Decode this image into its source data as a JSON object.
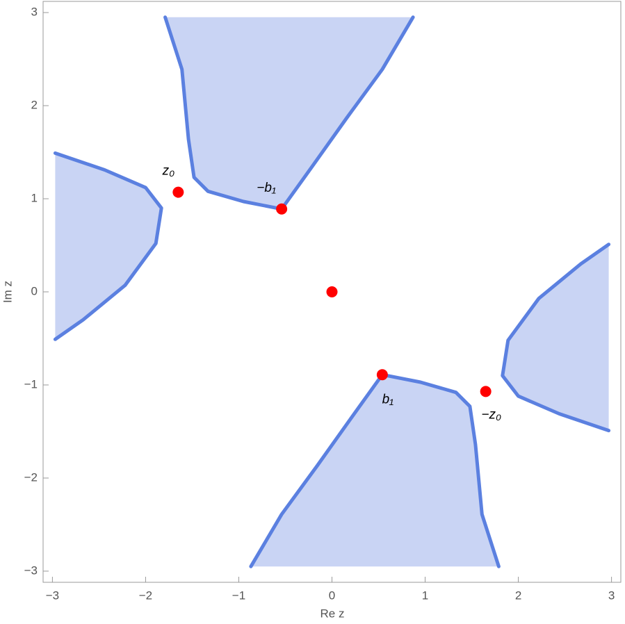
{
  "chart_data": {
    "type": "scatter",
    "x_label": "Re z",
    "y_label": "Im z",
    "xlim": [
      -3.1,
      3.1
    ],
    "ylim": [
      -3.12,
      3.12
    ],
    "xticks": [
      {
        "value": -3,
        "label": "−3"
      },
      {
        "value": -2,
        "label": "−2"
      },
      {
        "value": -1,
        "label": "−1"
      },
      0,
      1,
      2,
      3
    ],
    "yticks": [
      {
        "value": -3,
        "label": "−3"
      },
      {
        "value": -2,
        "label": "−2"
      },
      {
        "value": -1,
        "label": "−1"
      },
      0,
      1,
      2,
      3
    ],
    "region_fill": "#c9d4f4",
    "region_stroke": "#5b80e0",
    "regions": [
      {
        "x": [
          -1.79,
          -1.61,
          -1.54,
          -1.48,
          -1.33,
          -0.95,
          -0.54,
          -0.21,
          0.16,
          0.54,
          0.87
        ],
        "y": [
          2.95,
          2.39,
          1.64,
          1.23,
          1.08,
          0.97,
          0.89,
          1.35,
          1.87,
          2.39,
          2.95
        ]
      },
      {
        "x": [
          1.79,
          1.61,
          1.54,
          1.48,
          1.33,
          0.95,
          0.54,
          0.21,
          -0.16,
          -0.54,
          -0.87
        ],
        "y": [
          -2.95,
          -2.39,
          -1.64,
          -1.23,
          -1.08,
          -0.97,
          -0.89,
          -1.35,
          -1.87,
          -2.39,
          -2.95
        ]
      },
      {
        "x": [
          -2.97,
          -2.44,
          -2.0,
          -1.83,
          -1.89,
          -2.22,
          -2.67,
          -2.97
        ],
        "y": [
          1.49,
          1.31,
          1.12,
          0.9,
          0.52,
          0.07,
          -0.3,
          -0.51
        ]
      },
      {
        "x": [
          2.97,
          2.44,
          2.0,
          1.83,
          1.89,
          2.22,
          2.67,
          2.97
        ],
        "y": [
          -1.49,
          -1.31,
          -1.12,
          -0.9,
          -0.52,
          -0.07,
          0.3,
          0.51
        ]
      }
    ],
    "points": {
      "color": "#ff0000",
      "x": [
        -1.65,
        -0.54,
        0,
        0.54,
        1.65
      ],
      "y": [
        1.07,
        0.89,
        0,
        -0.89,
        -1.07
      ],
      "labels": [
        "z₀",
        "−b₁",
        null,
        "b₁",
        "−z₀"
      ]
    }
  }
}
